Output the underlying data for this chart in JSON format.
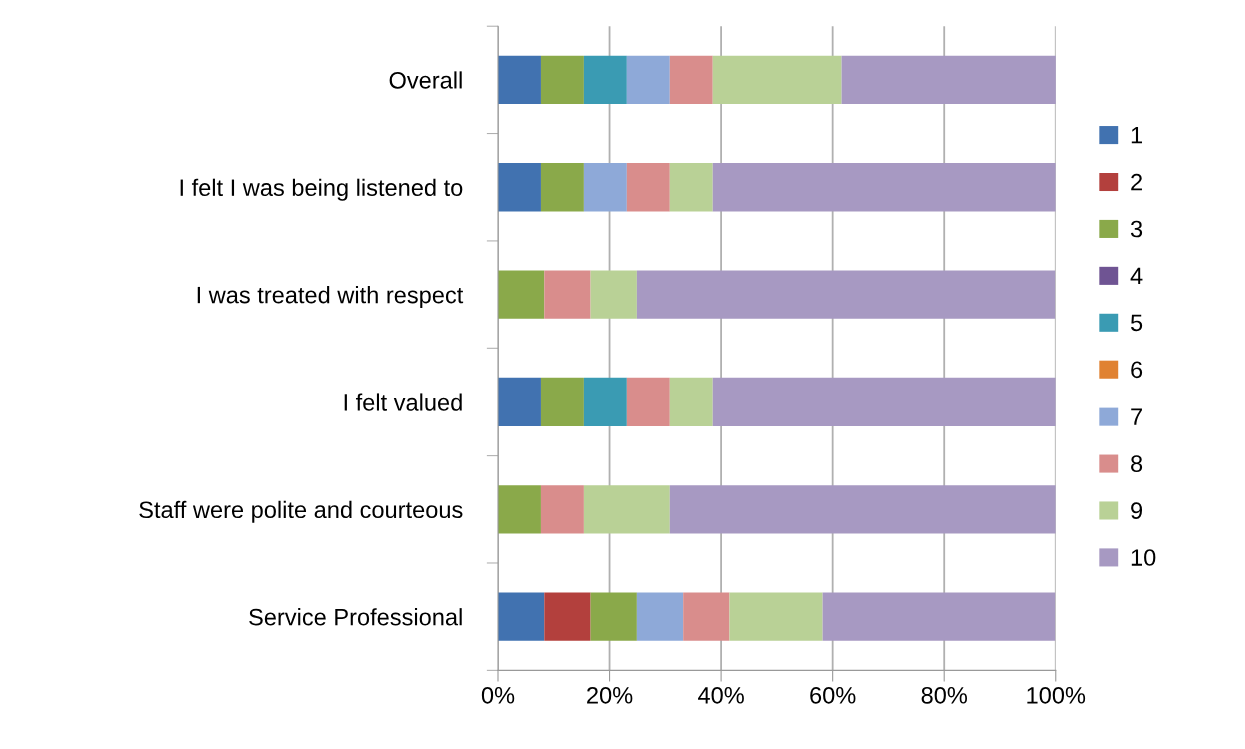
{
  "chart_data": {
    "type": "bar",
    "orientation": "horizontal",
    "stacked": true,
    "categories": [
      "Overall",
      "I felt I was being listened to",
      "I was treated with respect",
      "I felt valued",
      "Staff were polite and courteous",
      "Service Professional"
    ],
    "series": [
      {
        "name": "1",
        "color": "#4172b0",
        "values": [
          7.7,
          7.7,
          0,
          7.7,
          0,
          8.3
        ]
      },
      {
        "name": "2",
        "color": "#b3403d",
        "values": [
          0,
          0,
          0,
          0,
          0,
          8.3
        ]
      },
      {
        "name": "3",
        "color": "#8aa94a",
        "values": [
          7.7,
          7.7,
          8.3,
          7.7,
          7.7,
          8.3
        ]
      },
      {
        "name": "4",
        "color": "#6f5493",
        "values": [
          0,
          0,
          0,
          0,
          0,
          0
        ]
      },
      {
        "name": "5",
        "color": "#3a9bb3",
        "values": [
          7.7,
          0,
          0,
          7.7,
          0,
          0
        ]
      },
      {
        "name": "6",
        "color": "#e08232",
        "values": [
          0,
          0,
          0,
          0,
          0,
          0
        ]
      },
      {
        "name": "7",
        "color": "#8ea9d8",
        "values": [
          7.7,
          7.7,
          0,
          0,
          0,
          8.3
        ]
      },
      {
        "name": "8",
        "color": "#d98d8c",
        "values": [
          7.7,
          7.7,
          8.3,
          7.7,
          7.7,
          8.3
        ]
      },
      {
        "name": "9",
        "color": "#b9d196",
        "values": [
          23.1,
          7.7,
          8.3,
          7.7,
          15.4,
          16.7
        ]
      },
      {
        "name": "10",
        "color": "#a799c2",
        "values": [
          38.5,
          61.5,
          75.0,
          61.5,
          69.2,
          41.7
        ]
      }
    ],
    "xlim": [
      0,
      100
    ],
    "xticks": [
      {
        "value": 0,
        "label": "0%"
      },
      {
        "value": 20,
        "label": "20%"
      },
      {
        "value": 40,
        "label": "40%"
      },
      {
        "value": 60,
        "label": "60%"
      },
      {
        "value": 80,
        "label": "80%"
      },
      {
        "value": 100,
        "label": "100%"
      }
    ],
    "grid": "x",
    "legend": "right"
  }
}
